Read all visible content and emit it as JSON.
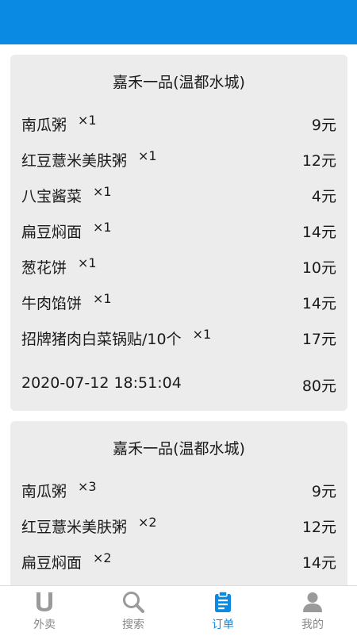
{
  "theme": {
    "accent": "#0a8ae3",
    "card_bg": "#ececec",
    "inactive": "#888888"
  },
  "orders": [
    {
      "store": "嘉禾一品(温都水城)",
      "items": [
        {
          "name": "南瓜粥",
          "qty": "×1",
          "price": "9元"
        },
        {
          "name": "红豆薏米美肤粥",
          "qty": "×1",
          "price": "12元"
        },
        {
          "name": "八宝酱菜",
          "qty": "×1",
          "price": "4元"
        },
        {
          "name": "扁豆焖面",
          "qty": "×1",
          "price": "14元"
        },
        {
          "name": "葱花饼",
          "qty": "×1",
          "price": "10元"
        },
        {
          "name": "牛肉馅饼",
          "qty": "×1",
          "price": "14元"
        },
        {
          "name": "招牌猪肉白菜锅贴/10个",
          "qty": "×1",
          "price": "17元"
        }
      ],
      "datetime": "2020-07-12 18:51:04",
      "total": "80元"
    },
    {
      "store": "嘉禾一品(温都水城)",
      "items": [
        {
          "name": "南瓜粥",
          "qty": "×3",
          "price": "9元"
        },
        {
          "name": "红豆薏米美肤粥",
          "qty": "×2",
          "price": "12元"
        },
        {
          "name": "扁豆焖面",
          "qty": "×2",
          "price": "14元"
        }
      ]
    }
  ],
  "nav": [
    {
      "label": "外卖",
      "icon": "takeout-icon",
      "active": false
    },
    {
      "label": "搜索",
      "icon": "search-icon",
      "active": false
    },
    {
      "label": "订单",
      "icon": "clipboard-icon",
      "active": true
    },
    {
      "label": "我的",
      "icon": "user-icon",
      "active": false
    }
  ]
}
